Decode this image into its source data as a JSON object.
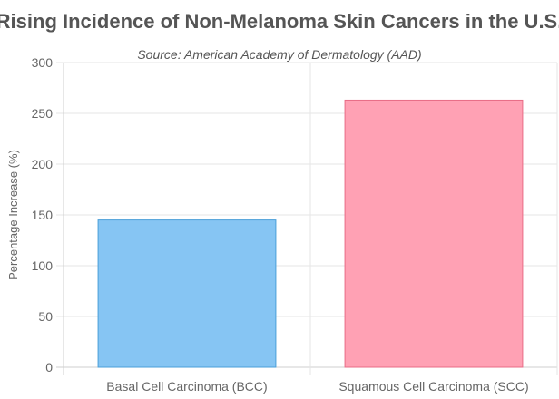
{
  "chart_data": {
    "type": "bar",
    "title": "Rising Incidence of Non-Melanoma Skin Cancers in the U.S.",
    "subtitle": "Source: American Academy of Dermatology (AAD)",
    "xlabel": "",
    "ylabel": "Percentage Increase (%)",
    "categories": [
      "Basal Cell Carcinoma (BCC)",
      "Squamous Cell Carcinoma (SCC)"
    ],
    "values": [
      145,
      263
    ],
    "ylim": [
      0,
      300
    ],
    "yticks": [
      0,
      50,
      100,
      150,
      200,
      250,
      300
    ],
    "grid": true,
    "legend": "none",
    "colors": {
      "bar_fill": [
        "#86c5f3",
        "#ffa1b4"
      ],
      "bar_stroke": [
        "#4a9fd8",
        "#e86c86"
      ],
      "grid": "#e5e5e5",
      "text": "#555555"
    }
  }
}
